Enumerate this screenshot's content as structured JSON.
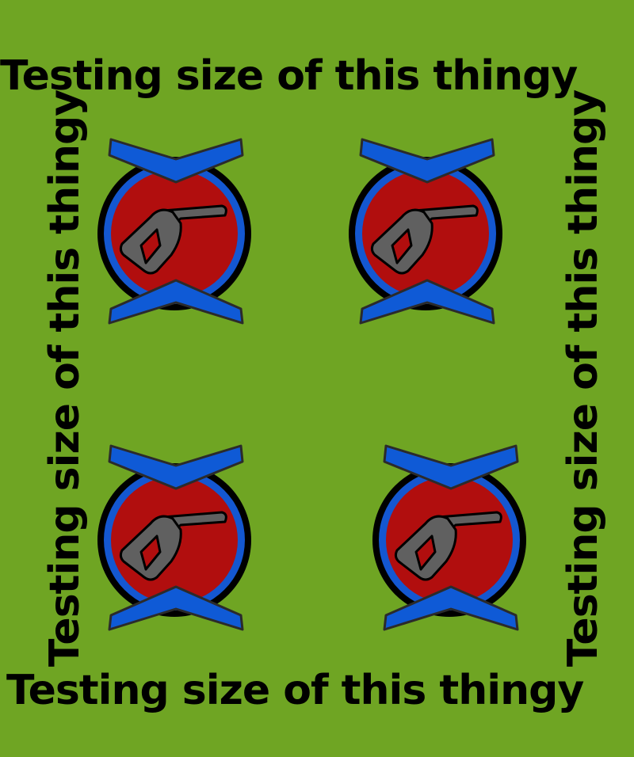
{
  "scene": {
    "background_color": "#6fa523",
    "labels": {
      "top": "Testing size of this thingy",
      "bottom": "Testing size of this thingy",
      "left": "Testing size of this thingy",
      "right": "Testing size of this thingy"
    },
    "badges": [
      {
        "icon": "fuel-pump-nozzle-icon"
      },
      {
        "icon": "fuel-pump-nozzle-icon"
      },
      {
        "icon": "fuel-pump-nozzle-icon"
      },
      {
        "icon": "fuel-pump-nozzle-icon"
      }
    ],
    "colors": {
      "ring_outer": "#000000",
      "ring_blue": "#1457d1",
      "disc_red": "#b10e0e",
      "chevron_blue": "#0f5ad6",
      "nozzle_gray": "#606060"
    }
  }
}
